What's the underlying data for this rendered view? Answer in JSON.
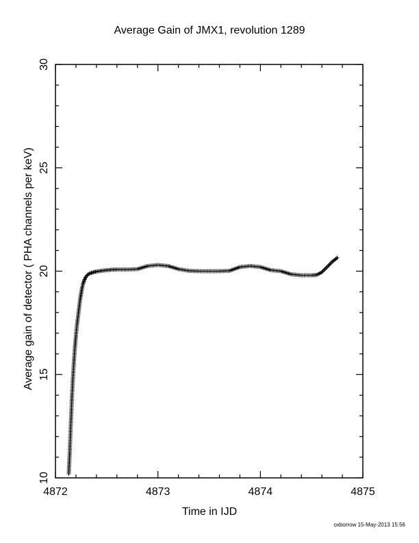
{
  "chart_data": {
    "type": "scatter",
    "title": "Average Gain of JMX1, revolution 1289",
    "xlabel": "Time in IJD",
    "ylabel": "Average gain of detector ( PHA channels per keV)",
    "xlim": [
      4872,
      4875
    ],
    "ylim": [
      10,
      30
    ],
    "xticks": [
      "4872",
      "4873",
      "4874",
      "4875"
    ],
    "yticks": [
      "10",
      "15",
      "20",
      "25",
      "30"
    ],
    "marker": "plus",
    "color": "#000000",
    "series": [
      {
        "x": [
          4872.13,
          4872.14,
          4872.15,
          4872.16,
          4872.17,
          4872.18,
          4872.19,
          4872.2,
          4872.21,
          4872.22,
          4872.23,
          4872.24,
          4872.25,
          4872.26,
          4872.27,
          4872.28,
          4872.29,
          4872.3,
          4872.32,
          4872.34,
          4872.36,
          4872.38,
          4872.4,
          4872.45,
          4872.5,
          4872.55,
          4872.6,
          4872.7,
          4872.8,
          4872.9,
          4873.0,
          4873.1,
          4873.2,
          4873.3,
          4873.4,
          4873.5,
          4873.6,
          4873.7,
          4873.8,
          4873.9,
          4874.0,
          4874.1,
          4874.2,
          4874.3,
          4874.4,
          4874.5,
          4874.55,
          4874.6,
          4874.65,
          4874.7,
          4874.75
        ],
        "y": [
          10.2,
          11.3,
          12.6,
          13.8,
          14.8,
          15.6,
          16.3,
          16.9,
          17.4,
          17.8,
          18.2,
          18.6,
          18.9,
          19.2,
          19.4,
          19.55,
          19.65,
          19.75,
          19.85,
          19.9,
          19.93,
          19.96,
          19.98,
          20.02,
          20.05,
          20.07,
          20.08,
          20.08,
          20.1,
          20.25,
          20.3,
          20.25,
          20.1,
          20.02,
          20.0,
          20.0,
          20.0,
          20.02,
          20.2,
          20.25,
          20.2,
          20.05,
          20.0,
          19.85,
          19.8,
          19.8,
          19.82,
          19.95,
          20.2,
          20.45,
          20.65
        ]
      }
    ]
  },
  "footer": {
    "credit": "oxborrow 15-May-2013 15:56"
  }
}
